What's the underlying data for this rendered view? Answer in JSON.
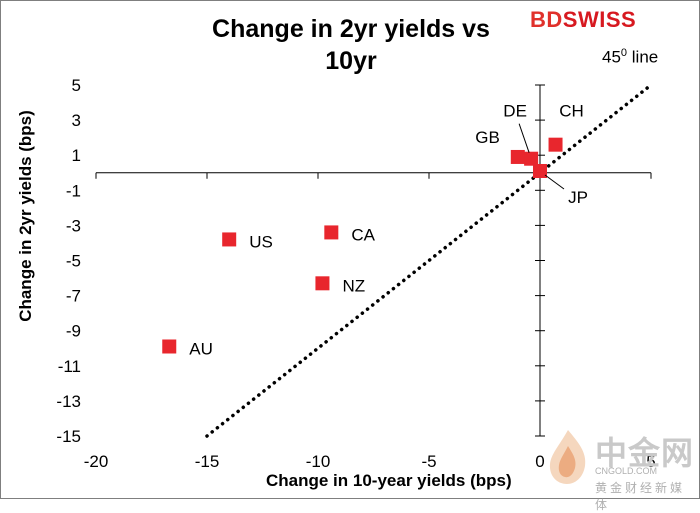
{
  "title": "Change in 2yr yields vs 10yr",
  "title_line1": "Change in 2yr yields vs",
  "title_line2": "10yr",
  "logo": {
    "part1": "BD",
    "part2": "SWISS"
  },
  "annotation": {
    "text": "45",
    "sup": "0",
    "suffix": " line"
  },
  "watermark": {
    "text": "中金网",
    "domain": "CNGOLD.COM",
    "tagline": "黄金财经新媒体"
  },
  "chart_data": {
    "type": "scatter",
    "title": "Change in 2yr yields vs 10yr",
    "xlabel": "Change in 10-year yields (bps)",
    "ylabel": "Change in 2yr yields (bps)",
    "xlim": [
      -20,
      5
    ],
    "ylim": [
      -15,
      5
    ],
    "x_ticks": [
      -20,
      -15,
      -10,
      -5,
      0,
      5
    ],
    "y_ticks": [
      5,
      3,
      1,
      -1,
      -3,
      -5,
      -7,
      -9,
      -11,
      -13,
      -15
    ],
    "grid": false,
    "marker_color": "#e8262d",
    "points": [
      {
        "label": "AU",
        "x": -16.7,
        "y": -9.9
      },
      {
        "label": "US",
        "x": -14.0,
        "y": -3.8
      },
      {
        "label": "CA",
        "x": -9.4,
        "y": -3.4
      },
      {
        "label": "NZ",
        "x": -9.8,
        "y": -6.3
      },
      {
        "label": "GB",
        "x": -1.0,
        "y": 0.9
      },
      {
        "label": "DE",
        "x": -0.4,
        "y": 0.8
      },
      {
        "label": "CH",
        "x": 0.7,
        "y": 1.6
      },
      {
        "label": "JP",
        "x": 0.0,
        "y": 0.1
      }
    ],
    "reference_line": {
      "name": "45⁰ line",
      "x": [
        -15,
        5
      ],
      "y": [
        -15,
        5
      ],
      "style": "dotted"
    }
  }
}
